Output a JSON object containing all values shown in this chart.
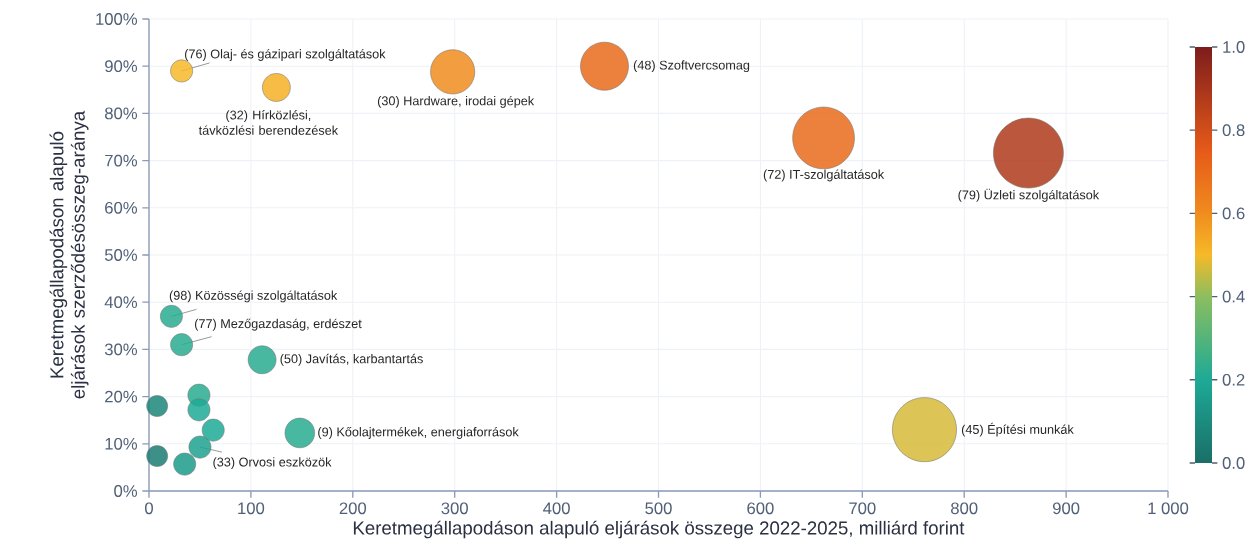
{
  "chart_data": {
    "type": "bubble",
    "xlabel": "Keretmegállapodáson alapuló eljárások összege 2022-2025, milliárd forint",
    "ylabel": "Keretmegállapodáson alapuló eljárások szerződésösszeg-aránya",
    "x": [
      32,
      125,
      298,
      447,
      662,
      863,
      761,
      22,
      32,
      111,
      148,
      50,
      49,
      49,
      63,
      35,
      8,
      8
    ],
    "values": [
      89,
      85.5,
      88.8,
      90,
      74.8,
      71.6,
      13,
      37,
      31,
      27.8,
      12.3,
      9.3,
      20.3,
      17.2,
      12.9,
      5.7,
      18,
      7.4
    ],
    "sizes": [
      0.1,
      0.16,
      0.4,
      0.47,
      0.78,
      1,
      0.84,
      0.1,
      0.1,
      0.16,
      0.18,
      0.1,
      0.1,
      0.1,
      0.1,
      0.1,
      0.09,
      0.09
    ],
    "cvalues": [
      0.5,
      0.52,
      0.6,
      0.7,
      0.7,
      0.88,
      0.47,
      0.22,
      0.22,
      0.22,
      0.22,
      0.17,
      0.22,
      0.2,
      0.2,
      0.15,
      0.08,
      0.05
    ],
    "clim": [
      0,
      1
    ],
    "cticks": [
      {
        "value": 0,
        "label": "0.0"
      },
      {
        "value": 0.2,
        "label": "0.2"
      },
      {
        "value": 0.4,
        "label": "0.4"
      },
      {
        "value": 0.6,
        "label": "0.6"
      },
      {
        "value": 0.8,
        "label": "0.8"
      },
      {
        "value": 1,
        "label": "1.0"
      }
    ],
    "xlim": [
      0,
      1000
    ],
    "ylim": [
      0,
      100
    ],
    "xticks": [
      0,
      100,
      200,
      300,
      400,
      500,
      600,
      700,
      800,
      900,
      {
        "value": 1000,
        "label": "1 000"
      }
    ],
    "yticks": [
      {
        "value": 0,
        "label": "0%"
      },
      {
        "value": 10,
        "label": "10%"
      },
      {
        "value": 20,
        "label": "20%"
      },
      {
        "value": 30,
        "label": "30%"
      },
      {
        "value": 40,
        "label": "40%"
      },
      {
        "value": 50,
        "label": "50%"
      },
      {
        "value": 60,
        "label": "60%"
      },
      {
        "value": 70,
        "label": "70%"
      },
      {
        "value": 80,
        "label": "80%"
      },
      {
        "value": 90,
        "label": "90%"
      },
      {
        "value": 100,
        "label": "100%"
      }
    ],
    "grid": true,
    "annotations": [
      {
        "text": "(76) Olaj- és gázipari szolgáltatások",
        "x": 32,
        "y": 89
      },
      {
        "text": "(32) Hírközlési, távközlési berendezések",
        "x": 125,
        "y": 85.5
      },
      {
        "text": "(30) Hardware, irodai gépek",
        "x": 298,
        "y": 88.8
      },
      {
        "text": "(48) Szoftvercsomag",
        "x": 447,
        "y": 90
      },
      {
        "text": "(72) IT-szolgáltatások",
        "x": 662,
        "y": 74.8
      },
      {
        "text": "(79) Üzleti szolgáltatások",
        "x": 863,
        "y": 71.6
      },
      {
        "text": "(45) Építési munkák",
        "x": 761,
        "y": 13
      },
      {
        "text": "(98) Közösségi szolgáltatások",
        "x": 22,
        "y": 37
      },
      {
        "text": "(77) Mezőgazdaság, erdészet",
        "x": 32,
        "y": 31
      },
      {
        "text": "(50) Javítás, karbantartás",
        "x": 111,
        "y": 27.8
      },
      {
        "text": "(9) Kőolajtermékek, energiaforrások",
        "x": 148,
        "y": 12.3
      },
      {
        "text": "(33) Orvosi eszközök",
        "x": 50,
        "y": 9.3
      }
    ]
  }
}
